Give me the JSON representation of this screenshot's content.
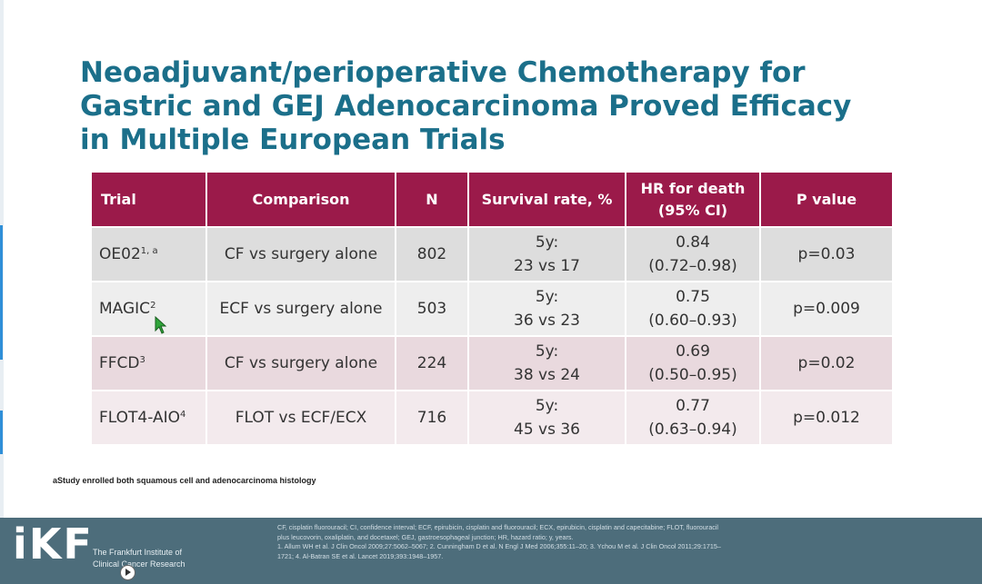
{
  "slide": {
    "title_lines": [
      "Neoadjuvant/perioperative Chemotherapy for",
      "Gastric and GEJ Adenocarcinoma Proved Efficacy",
      "in Multiple European Trials"
    ]
  },
  "table": {
    "headers": {
      "trial": "Trial",
      "comparison": "Comparison",
      "n": "N",
      "survival": "Survival rate, %",
      "hr_line1": "HR for death",
      "hr_line2": "(95% CI)",
      "p": "P value"
    },
    "rows": [
      {
        "trial": "OE02",
        "sup": "1, a",
        "comparison": "CF vs surgery alone",
        "n": "802",
        "surv1": "5y:",
        "surv2": "23 vs 17",
        "hr1": "0.84",
        "hr2": "(0.72–0.98)",
        "p": "p=0.03"
      },
      {
        "trial": "MAGIC",
        "sup": "2",
        "comparison": "ECF vs surgery alone",
        "n": "503",
        "surv1": "5y:",
        "surv2": "36 vs 23",
        "hr1": "0.75",
        "hr2": "(0.60–0.93)",
        "p": "p=0.009"
      },
      {
        "trial": "FFCD",
        "sup": "3",
        "comparison": "CF vs surgery alone",
        "n": "224",
        "surv1": "5y:",
        "surv2": "38 vs 24",
        "hr1": "0.69",
        "hr2": "(0.50–0.95)",
        "p": "p=0.02"
      },
      {
        "trial": "FLOT4-AIO",
        "sup": "4",
        "comparison": "FLOT vs ECF/ECX",
        "n": "716",
        "surv1": "5y:",
        "surv2": "45 vs 36",
        "hr1": "0.77",
        "hr2": "(0.63–0.94)",
        "p": "p=0.012"
      }
    ]
  },
  "footnote": "aStudy enrolled both squamous cell and adenocarcinoma histology",
  "footer": {
    "logo": "iKF",
    "logo_line1": "The Frankfurt Institute of",
    "logo_line2": "Clinical Cancer Research",
    "abbrev_line1": "CF, cisplatin fluorouracil; CI, confidence interval; ECF, epirubicin, cisplatin and fluorouracil; ECX, epirubicin, cisplatin and capecitabine; FLOT, fluorouracil",
    "abbrev_line2": "plus leucovorin, oxaliplatin, and docetaxel; GEJ, gastroesophageal junction; HR, hazard ratio; y, years.",
    "ref_line1": "1. Allum WH et al. J Clin Oncol 2009;27:5062–5067; 2. Cunningham D et al. N Engl J Med 2006;355:11–20; 3. Ychou M et al. J Clin Oncol 2011;29:1715–",
    "ref_line2": "1721; 4. Al-Batran SE et al. Lancet 2019;393:1948–1957."
  },
  "colors": {
    "title": "#1b6f8a",
    "header_bg": "#9b1a4a",
    "footer_bg": "#4d6d7b"
  }
}
